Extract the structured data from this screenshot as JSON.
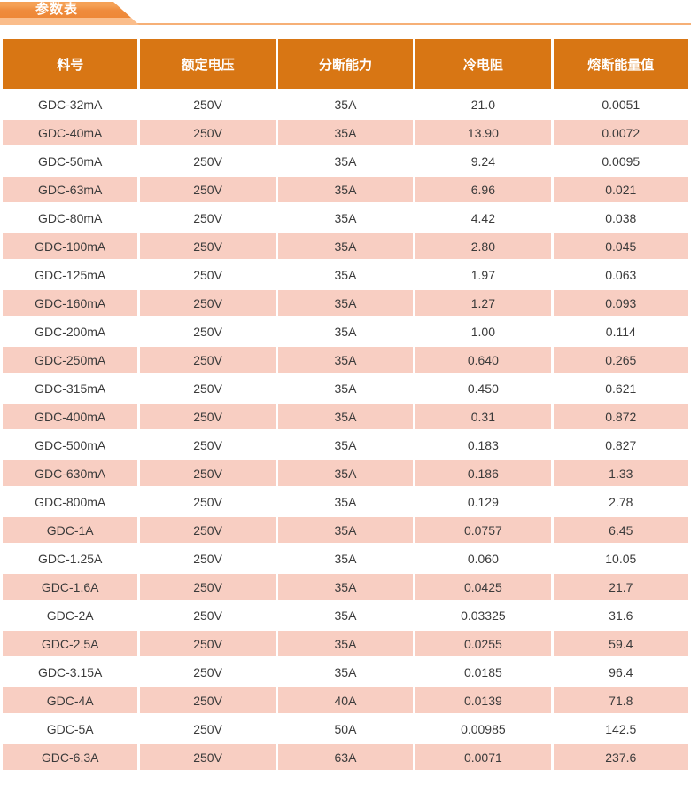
{
  "section": {
    "tab_label": "参数表"
  },
  "table": {
    "columns": [
      "料号",
      "额定电压",
      "分断能力",
      "冷电阻",
      "熔断能量值"
    ],
    "rows": [
      [
        "GDC-32mA",
        "250V",
        "35A",
        "21.0",
        "0.0051"
      ],
      [
        "GDC-40mA",
        "250V",
        "35A",
        "13.90",
        "0.0072"
      ],
      [
        "GDC-50mA",
        "250V",
        "35A",
        "9.24",
        "0.0095"
      ],
      [
        "GDC-63mA",
        "250V",
        "35A",
        "6.96",
        "0.021"
      ],
      [
        "GDC-80mA",
        "250V",
        "35A",
        "4.42",
        "0.038"
      ],
      [
        "GDC-100mA",
        "250V",
        "35A",
        "2.80",
        "0.045"
      ],
      [
        "GDC-125mA",
        "250V",
        "35A",
        "1.97",
        "0.063"
      ],
      [
        "GDC-160mA",
        "250V",
        "35A",
        "1.27",
        "0.093"
      ],
      [
        "GDC-200mA",
        "250V",
        "35A",
        "1.00",
        "0.114"
      ],
      [
        "GDC-250mA",
        "250V",
        "35A",
        "0.640",
        "0.265"
      ],
      [
        "GDC-315mA",
        "250V",
        "35A",
        "0.450",
        "0.621"
      ],
      [
        "GDC-400mA",
        "250V",
        "35A",
        "0.31",
        "0.872"
      ],
      [
        "GDC-500mA",
        "250V",
        "35A",
        "0.183",
        "0.827"
      ],
      [
        "GDC-630mA",
        "250V",
        "35A",
        "0.186",
        "1.33"
      ],
      [
        "GDC-800mA",
        "250V",
        "35A",
        "0.129",
        "2.78"
      ],
      [
        "GDC-1A",
        "250V",
        "35A",
        "0.0757",
        "6.45"
      ],
      [
        "GDC-1.25A",
        "250V",
        "35A",
        "0.060",
        "10.05"
      ],
      [
        "GDC-1.6A",
        "250V",
        "35A",
        "0.0425",
        "21.7"
      ],
      [
        "GDC-2A",
        "250V",
        "35A",
        "0.03325",
        "31.6"
      ],
      [
        "GDC-2.5A",
        "250V",
        "35A",
        "0.0255",
        "59.4"
      ],
      [
        "GDC-3.15A",
        "250V",
        "35A",
        "0.0185",
        "96.4"
      ],
      [
        "GDC-4A",
        "250V",
        "40A",
        "0.0139",
        "71.8"
      ],
      [
        "GDC-5A",
        "250V",
        "50A",
        "0.00985",
        "142.5"
      ],
      [
        "GDC-6.3A",
        "250V",
        "63A",
        "0.0071",
        "237.6"
      ]
    ]
  },
  "colors": {
    "header_bg": "#d87614",
    "row_pink": "#f8cec2",
    "tab_dark": "#ef8b3c",
    "tab_light": "#fabd8b",
    "rule_line": "#f6b077",
    "cell_text": "#3a3a3a"
  }
}
